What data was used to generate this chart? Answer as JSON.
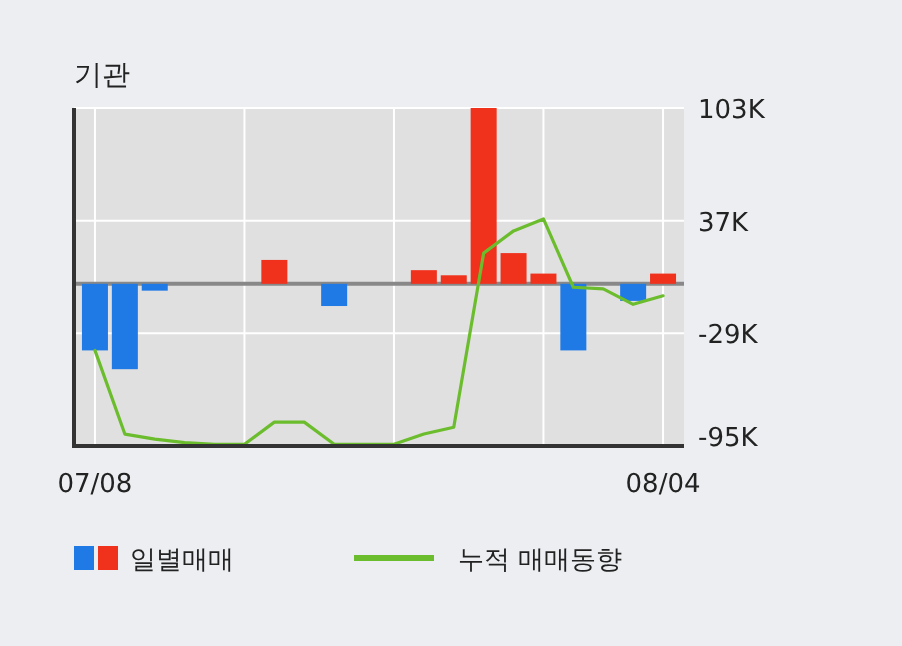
{
  "chart_data": {
    "type": "bar",
    "title": "기관",
    "categories": [
      "07/08",
      null,
      null,
      null,
      null,
      null,
      null,
      null,
      null,
      null,
      null,
      null,
      null,
      null,
      null,
      null,
      null,
      null,
      null,
      "08/04"
    ],
    "series": [
      {
        "name": "일별매매",
        "values": [
          -39,
          -50,
          -4,
          0,
          0,
          0,
          14,
          0,
          -13,
          0,
          0,
          8,
          5,
          103,
          18,
          6,
          -39,
          0,
          -10,
          6
        ],
        "colors": [
          "#1f7ae6",
          "#1f7ae6",
          "#1f7ae6",
          "#1f7ae6",
          "#1f7ae6",
          "#1f7ae6",
          "#f0311c",
          "#1f7ae6",
          "#1f7ae6",
          "#1f7ae6",
          "#1f7ae6",
          "#f0311c",
          "#f0311c",
          "#f0311c",
          "#f0311c",
          "#f0311c",
          "#1f7ae6",
          "#1f7ae6",
          "#1f7ae6",
          "#f0311c"
        ]
      },
      {
        "name": "누적 매매동향",
        "type": "line",
        "color": "#6cbd2d",
        "values": [
          -39,
          -88,
          -91,
          -93,
          -94,
          -94,
          -81,
          -81,
          -94,
          -94,
          -94,
          -88,
          -84,
          18,
          31,
          38,
          -2,
          -3,
          -12,
          -7
        ]
      }
    ],
    "ylim": [
      -95,
      103
    ],
    "yticks": [
      {
        "value": 103,
        "label": "103K"
      },
      {
        "value": 37,
        "label": "37K"
      },
      {
        "value": -29,
        "label": "-29K"
      },
      {
        "value": -95,
        "label": "-95K"
      }
    ],
    "ref_lines": [
      {
        "axis": "y",
        "value": 0,
        "color": "#888888"
      }
    ],
    "grid": true,
    "legend": "bottom"
  }
}
